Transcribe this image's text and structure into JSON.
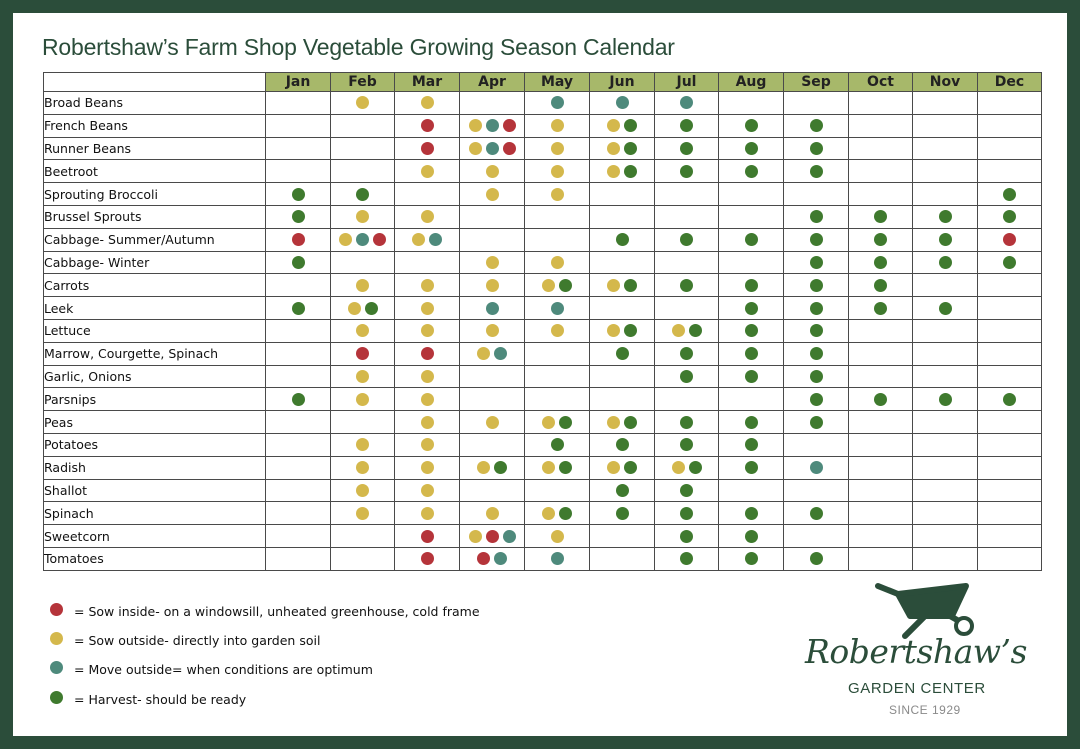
{
  "title": "Robertshaw’s Farm Shop Vegetable Growing Season Calendar",
  "colors": {
    "sow_inside": "#b5343a",
    "sow_outside": "#d4b84c",
    "move_outside": "#4e8a7c",
    "harvest": "#3f7a2e",
    "frame": "#2b4d3a",
    "header": "#a7b86a"
  },
  "months": [
    "Jan",
    "Feb",
    "Mar",
    "Apr",
    "May",
    "Jun",
    "Jul",
    "Aug",
    "Sep",
    "Oct",
    "Nov",
    "Dec"
  ],
  "rows": [
    {
      "name": "Broad Beans",
      "cells": [
        [],
        [
          "y"
        ],
        [
          "y"
        ],
        [],
        [
          "t"
        ],
        [
          "t"
        ],
        [
          "t"
        ],
        [],
        [],
        [],
        [],
        []
      ]
    },
    {
      "name": "French Beans",
      "cells": [
        [],
        [],
        [
          "r"
        ],
        [
          "y",
          "t",
          "r"
        ],
        [
          "y"
        ],
        [
          "y",
          "g"
        ],
        [
          "g"
        ],
        [
          "g"
        ],
        [
          "g"
        ],
        [],
        [],
        []
      ]
    },
    {
      "name": "Runner Beans",
      "cells": [
        [],
        [],
        [
          "r"
        ],
        [
          "y",
          "t",
          "r"
        ],
        [
          "y"
        ],
        [
          "y",
          "g"
        ],
        [
          "g"
        ],
        [
          "g"
        ],
        [
          "g"
        ],
        [],
        [],
        []
      ]
    },
    {
      "name": "Beetroot",
      "cells": [
        [],
        [],
        [
          "y"
        ],
        [
          "y"
        ],
        [
          "y"
        ],
        [
          "y",
          "g"
        ],
        [
          "g"
        ],
        [
          "g"
        ],
        [
          "g"
        ],
        [],
        [],
        []
      ]
    },
    {
      "name": "Sprouting Broccoli",
      "cells": [
        [
          "g"
        ],
        [
          "g"
        ],
        [],
        [
          "y"
        ],
        [
          "y"
        ],
        [],
        [],
        [],
        [],
        [],
        [],
        [
          "g"
        ]
      ]
    },
    {
      "name": "Brussel Sprouts",
      "cells": [
        [
          "g"
        ],
        [
          "y"
        ],
        [
          "y"
        ],
        [],
        [],
        [],
        [],
        [],
        [
          "g"
        ],
        [
          "g"
        ],
        [
          "g"
        ],
        [
          "g"
        ]
      ]
    },
    {
      "name": "Cabbage- Summer/Autumn",
      "cells": [
        [
          "r"
        ],
        [
          "y",
          "t",
          "r"
        ],
        [
          "y",
          "t"
        ],
        [],
        [],
        [
          "g"
        ],
        [
          "g"
        ],
        [
          "g"
        ],
        [
          "g"
        ],
        [
          "g"
        ],
        [
          "g"
        ],
        [
          "r"
        ]
      ]
    },
    {
      "name": "Cabbage- Winter",
      "cells": [
        [
          "g"
        ],
        [],
        [],
        [
          "y"
        ],
        [
          "y"
        ],
        [],
        [],
        [],
        [
          "g"
        ],
        [
          "g"
        ],
        [
          "g"
        ],
        [
          "g"
        ]
      ]
    },
    {
      "name": "Carrots",
      "cells": [
        [],
        [
          "y"
        ],
        [
          "y"
        ],
        [
          "y"
        ],
        [
          "y",
          "g"
        ],
        [
          "y",
          "g"
        ],
        [
          "g"
        ],
        [
          "g"
        ],
        [
          "g"
        ],
        [
          "g"
        ],
        [],
        []
      ]
    },
    {
      "name": "Leek",
      "cells": [
        [
          "g"
        ],
        [
          "y",
          "g"
        ],
        [
          "y"
        ],
        [
          "t"
        ],
        [
          "t"
        ],
        [],
        [],
        [
          "g"
        ],
        [
          "g"
        ],
        [
          "g"
        ],
        [
          "g"
        ],
        []
      ]
    },
    {
      "name": "Lettuce",
      "cells": [
        [],
        [
          "y"
        ],
        [
          "y"
        ],
        [
          "y"
        ],
        [
          "y"
        ],
        [
          "y",
          "g"
        ],
        [
          "y",
          "g"
        ],
        [
          "g"
        ],
        [
          "g"
        ],
        [],
        [],
        []
      ]
    },
    {
      "name": "Marrow, Courgette, Spinach",
      "cells": [
        [],
        [
          "r"
        ],
        [
          "r"
        ],
        [
          "y",
          "t"
        ],
        [],
        [
          "g"
        ],
        [
          "g"
        ],
        [
          "g"
        ],
        [
          "g"
        ],
        [],
        [],
        []
      ]
    },
    {
      "name": "Garlic, Onions",
      "cells": [
        [],
        [
          "y"
        ],
        [
          "y"
        ],
        [],
        [],
        [],
        [
          "g"
        ],
        [
          "g"
        ],
        [
          "g"
        ],
        [],
        [],
        []
      ]
    },
    {
      "name": "Parsnips",
      "cells": [
        [
          "g"
        ],
        [
          "y"
        ],
        [
          "y"
        ],
        [],
        [],
        [],
        [],
        [],
        [
          "g"
        ],
        [
          "g"
        ],
        [
          "g"
        ],
        [
          "g"
        ]
      ]
    },
    {
      "name": "Peas",
      "cells": [
        [],
        [],
        [
          "y"
        ],
        [
          "y"
        ],
        [
          "y",
          "g"
        ],
        [
          "y",
          "g"
        ],
        [
          "g"
        ],
        [
          "g"
        ],
        [
          "g"
        ],
        [],
        [],
        []
      ]
    },
    {
      "name": "Potatoes",
      "cells": [
        [],
        [
          "y"
        ],
        [
          "y"
        ],
        [],
        [
          "g"
        ],
        [
          "g"
        ],
        [
          "g"
        ],
        [
          "g"
        ],
        [],
        [],
        [],
        []
      ]
    },
    {
      "name": "Radish",
      "cells": [
        [],
        [
          "y"
        ],
        [
          "y"
        ],
        [
          "y",
          "g"
        ],
        [
          "y",
          "g"
        ],
        [
          "y",
          "g"
        ],
        [
          "y",
          "g"
        ],
        [
          "g"
        ],
        [
          "t"
        ],
        [],
        [],
        []
      ]
    },
    {
      "name": "Shallot",
      "cells": [
        [],
        [
          "y"
        ],
        [
          "y"
        ],
        [],
        [],
        [
          "g"
        ],
        [
          "g"
        ],
        [],
        [],
        [],
        [],
        []
      ]
    },
    {
      "name": "Spinach",
      "cells": [
        [],
        [
          "y"
        ],
        [
          "y"
        ],
        [
          "y"
        ],
        [
          "y",
          "g"
        ],
        [
          "g"
        ],
        [
          "g"
        ],
        [
          "g"
        ],
        [
          "g"
        ],
        [],
        [],
        []
      ]
    },
    {
      "name": "Sweetcorn",
      "cells": [
        [],
        [],
        [
          "r"
        ],
        [
          "y",
          "r",
          "t"
        ],
        [
          "y"
        ],
        [],
        [
          "g"
        ],
        [
          "g"
        ],
        [],
        [],
        [],
        []
      ]
    },
    {
      "name": "Tomatoes",
      "cells": [
        [],
        [],
        [
          "r"
        ],
        [
          "r",
          "t"
        ],
        [
          "t"
        ],
        [],
        [
          "g"
        ],
        [
          "g"
        ],
        [
          "g"
        ],
        [],
        [],
        []
      ]
    }
  ],
  "legend": [
    {
      "key": "r",
      "label": "= Sow inside- on a windowsill, unheated greenhouse, cold frame"
    },
    {
      "key": "y",
      "label": "= Sow outside- directly into garden soil"
    },
    {
      "key": "t",
      "label": " = Move outside= when conditions are optimum"
    },
    {
      "key": "g",
      "label": " = Harvest- should be ready"
    }
  ],
  "logo": {
    "name": "Robertshaw’s",
    "subtitle": "GARDEN CENTER",
    "since": "SINCE 1929",
    "icon": "wheelbarrow-icon"
  }
}
